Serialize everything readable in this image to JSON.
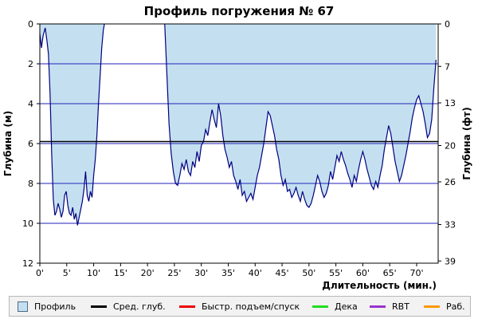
{
  "chart_data": {
    "type": "area",
    "title": "Профиль погружения № 67",
    "xlabel": "Длительность (мин.)",
    "ylabel": "Глубина (м)",
    "ylabel_right": "Глубина (фт)",
    "xlim": [
      0,
      74
    ],
    "ylim": [
      0,
      12
    ],
    "x_ticks": [
      0,
      5,
      10,
      15,
      20,
      25,
      30,
      35,
      40,
      45,
      50,
      55,
      60,
      65,
      70
    ],
    "x_tick_labels": [
      "0'",
      "5'",
      "10'",
      "15'",
      "20'",
      "25'",
      "30'",
      "35'",
      "40'",
      "45'",
      "50'",
      "55'",
      "60'",
      "65'",
      "70'"
    ],
    "y_ticks": [
      0,
      2,
      4,
      6,
      8,
      10,
      12
    ],
    "y_tick_labels": [
      "0",
      "2",
      "4",
      "6",
      "8",
      "10",
      "12"
    ],
    "y_right_tick_values_m": [
      0,
      2.13,
      3.96,
      6.1,
      7.92,
      10.06,
      11.89
    ],
    "y_right_tick_labels": [
      "0",
      "7",
      "13",
      "20",
      "26",
      "33",
      "39"
    ],
    "avg_depth": 5.9,
    "grid": "horizontal",
    "series": [
      {
        "name": "Профиль",
        "color": "#c4e0f0",
        "line_color": "#000080",
        "segments": [
          {
            "x": [
              0,
              0.3,
              0.6,
              1.0,
              1.3,
              1.6,
              1.9,
              2.2,
              2.5,
              2.8,
              3.1,
              3.4,
              3.7,
              4.0,
              4.3,
              4.6,
              4.9,
              5.2,
              5.5,
              5.8,
              6.1,
              6.4,
              6.7,
              7.0,
              7.3,
              7.6,
              7.9,
              8.2,
              8.5,
              8.8,
              9.1,
              9.4,
              9.7,
              10.0,
              10.3,
              10.6,
              10.9,
              11.2,
              11.5,
              11.8,
              12.0
            ],
            "y": [
              0.5,
              1.2,
              0.6,
              0.2,
              0.8,
              1.5,
              3.5,
              6.5,
              8.8,
              9.6,
              9.4,
              9.0,
              9.3,
              9.7,
              9.4,
              8.6,
              8.4,
              9.1,
              9.5,
              9.6,
              9.2,
              9.8,
              9.5,
              10.1,
              9.7,
              9.3,
              8.9,
              8.3,
              7.4,
              8.6,
              8.9,
              8.4,
              8.7,
              7.6,
              6.8,
              5.6,
              4.0,
              2.6,
              1.2,
              0.3,
              0
            ]
          },
          {
            "x": [
              23.2,
              23.6,
              24.0,
              24.4,
              24.8,
              25.2,
              25.6,
              26.0,
              26.4,
              26.8,
              27.2,
              27.6,
              28.0,
              28.4,
              28.8,
              29.2,
              29.6,
              30.0,
              30.4,
              30.8,
              31.2,
              31.6,
              32.0,
              32.4,
              32.8,
              33.2,
              33.6,
              34.0,
              34.4,
              34.8,
              35.2,
              35.6,
              36.0,
              36.4,
              36.8,
              37.2,
              37.6,
              38.0,
              38.4,
              38.8,
              39.2,
              39.6,
              40.0,
              40.4,
              40.8,
              41.2,
              41.6,
              42.0,
              42.4,
              42.8,
              43.2,
              43.6,
              44.0,
              44.4,
              44.8,
              45.2,
              45.6,
              46.0,
              46.4,
              46.8,
              47.2,
              47.6,
              48.0,
              48.4,
              48.8,
              49.2,
              49.6,
              50.0,
              50.4,
              50.8,
              51.2,
              51.6,
              52.0,
              52.4,
              52.8,
              53.2,
              53.6,
              54.0,
              54.4,
              54.8,
              55.2,
              55.6,
              56.0,
              56.4,
              56.8,
              57.2,
              57.6,
              58.0,
              58.4,
              58.8,
              59.2,
              59.6,
              60.0,
              60.4,
              60.8,
              61.2,
              61.6,
              62.0,
              62.4,
              62.8,
              63.2,
              63.6,
              64.0,
              64.4,
              64.8,
              65.2,
              65.6,
              66.0,
              66.4,
              66.8,
              67.2,
              67.6,
              68.0,
              68.4,
              68.8,
              69.2,
              69.6,
              70.0,
              70.4,
              70.8,
              71.2,
              71.6,
              72.0,
              72.4,
              72.8,
              73.2,
              73.6
            ],
            "y": [
              0,
              2.5,
              5.0,
              6.5,
              7.4,
              8.0,
              8.1,
              7.6,
              7.0,
              7.3,
              6.8,
              7.4,
              7.6,
              6.9,
              7.2,
              6.4,
              6.9,
              6.1,
              5.9,
              5.3,
              5.6,
              4.9,
              4.3,
              4.8,
              5.2,
              4.0,
              4.6,
              5.6,
              6.3,
              6.7,
              7.2,
              6.9,
              7.6,
              7.9,
              8.3,
              7.8,
              8.6,
              8.4,
              8.9,
              8.7,
              8.5,
              8.8,
              8.2,
              7.6,
              7.2,
              6.6,
              6.0,
              5.2,
              4.4,
              4.6,
              5.1,
              5.6,
              6.3,
              6.8,
              7.6,
              8.1,
              7.8,
              8.4,
              8.3,
              8.7,
              8.5,
              8.2,
              8.6,
              8.9,
              8.4,
              8.8,
              9.1,
              9.2,
              9.0,
              8.6,
              8.1,
              7.6,
              7.9,
              8.4,
              8.7,
              8.5,
              8.1,
              7.4,
              7.8,
              7.2,
              6.6,
              6.9,
              6.4,
              6.8,
              7.1,
              7.5,
              7.8,
              8.2,
              7.6,
              7.9,
              7.3,
              6.8,
              6.4,
              6.8,
              7.3,
              7.7,
              8.1,
              8.3,
              7.9,
              8.2,
              7.6,
              7.1,
              6.3,
              5.7,
              5.1,
              5.5,
              6.2,
              6.9,
              7.4,
              7.9,
              7.6,
              7.1,
              6.6,
              6.0,
              5.4,
              4.7,
              4.2,
              3.8,
              3.6,
              4.0,
              4.4,
              5.0,
              5.7,
              5.5,
              4.8,
              3.2,
              1.8
            ]
          }
        ]
      }
    ]
  },
  "legend": [
    {
      "label": "Профиль",
      "color": "#c4e0f0",
      "kind": "box"
    },
    {
      "label": "Сред. глуб.",
      "color": "#000000",
      "kind": "line"
    },
    {
      "label": "Быстр. подъем/спуск",
      "color": "#ee0000",
      "kind": "line"
    },
    {
      "label": "Дека",
      "color": "#22dd22",
      "kind": "line"
    },
    {
      "label": "RBT",
      "color": "#9933cc",
      "kind": "line"
    },
    {
      "label": "Раб.",
      "color": "#ff9900",
      "kind": "line"
    }
  ]
}
